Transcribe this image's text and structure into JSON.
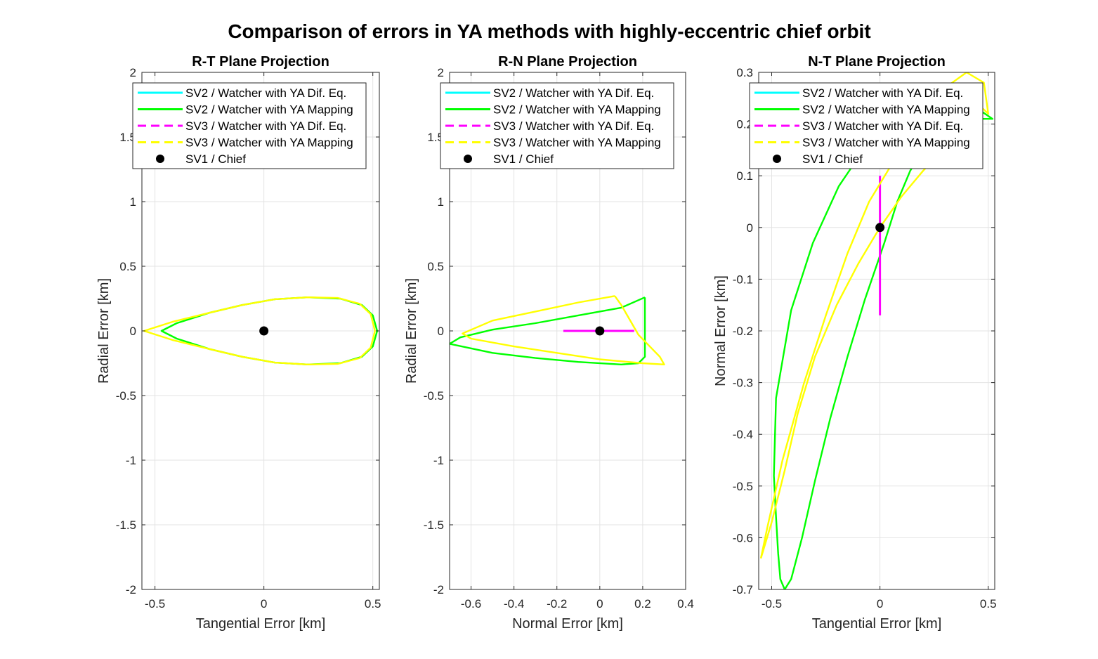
{
  "figure": {
    "title": "Comparison of errors in YA methods with highly-eccentric chief orbit"
  },
  "colors": {
    "sv2_difeq": "#00ffff",
    "sv2_mapping": "#00ff00",
    "sv3_difeq": "#ff00ff",
    "sv3_mapping": "#ffff00",
    "chief": "#000000",
    "grid": "#e3e3e3",
    "axis": "#262626"
  },
  "legend": [
    {
      "label": "SV2 / Watcher with YA Dif. Eq.",
      "color": "#00ffff",
      "style": "solid"
    },
    {
      "label": "SV2 / Watcher with YA Mapping",
      "color": "#00ff00",
      "style": "solid"
    },
    {
      "label": "SV3 / Watcher with YA Dif. Eq.",
      "color": "#ff00ff",
      "style": "dashed"
    },
    {
      "label": "SV3 / Watcher with YA Mapping",
      "color": "#ffff00",
      "style": "dashed"
    },
    {
      "label": "SV1 / Chief",
      "color": "#000000",
      "style": "marker"
    }
  ],
  "chart_data": [
    {
      "type": "line",
      "title": "R-T Plane Projection",
      "xlabel": "Tangential Error [km]",
      "ylabel": "Radial Error [km]",
      "xlim": [
        -0.56,
        0.53
      ],
      "ylim": [
        -2,
        2
      ],
      "xticks": [
        -0.5,
        0,
        0.5
      ],
      "xtick_labels": [
        "-0.5",
        "0",
        "0.5"
      ],
      "yticks": [
        -2,
        -1.5,
        -1,
        -0.5,
        0,
        0.5,
        1,
        1.5,
        2
      ],
      "ytick_labels": [
        "-2",
        "-1.5",
        "-1",
        "-0.5",
        "0",
        "0.5",
        "1",
        "1.5",
        "2"
      ],
      "grid": true,
      "legend_position": "top",
      "series": [
        {
          "name": "SV2 / Watcher with YA Mapping",
          "key": "sv2_mapping",
          "x": [
            0.52,
            0.5,
            0.45,
            0.35,
            0.2,
            0.05,
            -0.1,
            -0.25,
            -0.4,
            -0.47,
            -0.4,
            -0.25,
            -0.1,
            0.05,
            0.2,
            0.35,
            0.45,
            0.5,
            0.52
          ],
          "y": [
            0,
            0.12,
            0.2,
            0.25,
            0.26,
            0.245,
            0.2,
            0.14,
            0.06,
            0,
            -0.06,
            -0.14,
            -0.2,
            -0.245,
            -0.26,
            -0.25,
            -0.2,
            -0.12,
            0
          ]
        },
        {
          "name": "SV3 / Watcher with YA Mapping",
          "key": "sv3_mapping",
          "x": [
            0.51,
            0.49,
            0.44,
            0.34,
            0.2,
            0.05,
            -0.1,
            -0.25,
            -0.42,
            -0.55,
            -0.42,
            -0.25,
            -0.1,
            0.05,
            0.2,
            0.34,
            0.44,
            0.49,
            0.51
          ],
          "y": [
            0,
            0.13,
            0.21,
            0.255,
            0.26,
            0.245,
            0.2,
            0.14,
            0.07,
            0,
            -0.07,
            -0.14,
            -0.2,
            -0.245,
            -0.26,
            -0.255,
            -0.21,
            -0.13,
            0
          ]
        },
        {
          "name": "SV1 / Chief",
          "key": "chief",
          "marker": true,
          "x": [
            0
          ],
          "y": [
            0
          ]
        }
      ]
    },
    {
      "type": "line",
      "title": "R-N Plane Projection",
      "xlabel": "Normal Error [km]",
      "ylabel": "Radial Error [km]",
      "xlim": [
        -0.7,
        0.4
      ],
      "ylim": [
        -2,
        2
      ],
      "xticks": [
        -0.6,
        -0.4,
        -0.2,
        0,
        0.2,
        0.4
      ],
      "xtick_labels": [
        "-0.6",
        "-0.4",
        "-0.2",
        "0",
        "0.2",
        "0.4"
      ],
      "yticks": [
        -2,
        -1.5,
        -1,
        -0.5,
        0,
        0.5,
        1,
        1.5,
        2
      ],
      "ytick_labels": [
        "-2",
        "-1.5",
        "-1",
        "-0.5",
        "0",
        "0.5",
        "1",
        "1.5",
        "2"
      ],
      "grid": true,
      "legend_position": "top",
      "series": [
        {
          "name": "SV2 / Watcher with YA Mapping",
          "key": "sv2_mapping",
          "x": [
            0.21,
            0.1,
            -0.1,
            -0.3,
            -0.5,
            -0.65,
            -0.7,
            -0.5,
            -0.3,
            -0.1,
            0.1,
            0.18,
            0.21,
            0.21
          ],
          "y": [
            0.26,
            0.18,
            0.12,
            0.06,
            0.01,
            -0.05,
            -0.1,
            -0.17,
            -0.21,
            -0.24,
            -0.26,
            -0.25,
            -0.2,
            0.26
          ]
        },
        {
          "name": "SV3 / Watcher with YA Dif. Eq.",
          "key": "sv3_difeq",
          "x": [
            -0.17,
            0.16
          ],
          "y": [
            0,
            0
          ]
        },
        {
          "name": "SV3 / Watcher with YA Mapping",
          "key": "sv3_mapping",
          "x": [
            0.07,
            -0.1,
            -0.3,
            -0.5,
            -0.64,
            -0.6,
            -0.4,
            -0.2,
            0,
            0.2,
            0.3,
            0.28,
            0.18,
            0.1,
            0.07
          ],
          "y": [
            0.27,
            0.22,
            0.15,
            0.08,
            -0.02,
            -0.06,
            -0.12,
            -0.17,
            -0.22,
            -0.25,
            -0.26,
            -0.2,
            -0.03,
            0.2,
            0.27
          ]
        },
        {
          "name": "SV1 / Chief",
          "key": "chief",
          "marker": true,
          "x": [
            0
          ],
          "y": [
            0
          ]
        }
      ]
    },
    {
      "type": "line",
      "title": "N-T Plane Projection",
      "xlabel": "Tangential Error [km]",
      "ylabel": "Normal Error [km]",
      "xlim": [
        -0.56,
        0.53
      ],
      "ylim": [
        -0.7,
        0.3
      ],
      "xticks": [
        -0.5,
        0,
        0.5
      ],
      "xtick_labels": [
        "-0.5",
        "0",
        "0.5"
      ],
      "yticks": [
        -0.7,
        -0.6,
        -0.5,
        -0.4,
        -0.3,
        -0.2,
        -0.1,
        0,
        0.1,
        0.2,
        0.3
      ],
      "ytick_labels": [
        "-0.7",
        "-0.6",
        "-0.5",
        "-0.4",
        "-0.3",
        "-0.2",
        "-0.1",
        "0",
        "0.1",
        "0.2",
        "0.3"
      ],
      "grid": true,
      "legend_position": "top",
      "series": [
        {
          "name": "SV2 / Watcher with YA Mapping",
          "key": "sv2_mapping",
          "x": [
            -0.49,
            -0.48,
            -0.47,
            -0.46,
            -0.44,
            -0.41,
            -0.36,
            -0.3,
            -0.23,
            -0.15,
            -0.07,
            0.02,
            0.08,
            0.14,
            0.2,
            0.26,
            0.32,
            0.38,
            0.45,
            0.5,
            0.52,
            0.45,
            0.35,
            0.22,
            0.08,
            -0.06,
            -0.19,
            -0.31,
            -0.41,
            -0.48,
            -0.49
          ],
          "y": [
            -0.48,
            -0.56,
            -0.63,
            -0.68,
            -0.7,
            -0.68,
            -0.6,
            -0.49,
            -0.37,
            -0.25,
            -0.14,
            -0.03,
            0.05,
            0.11,
            0.15,
            0.17,
            0.19,
            0.2,
            0.21,
            0.21,
            0.21,
            0.23,
            0.25,
            0.24,
            0.21,
            0.16,
            0.08,
            -0.03,
            -0.16,
            -0.33,
            -0.48
          ]
        },
        {
          "name": "SV3 / Watcher with YA Dif. Eq.",
          "key": "sv3_difeq",
          "x": [
            0,
            0
          ],
          "y": [
            0.1,
            -0.17
          ]
        },
        {
          "name": "SV3 / Watcher with YA Mapping",
          "key": "sv3_mapping",
          "x": [
            -0.55,
            -0.5,
            -0.44,
            -0.38,
            -0.3,
            -0.2,
            -0.1,
            0,
            0.1,
            0.2,
            0.27,
            0.35,
            0.45,
            0.5,
            0.48,
            0.4,
            0.3,
            0.2,
            0.08,
            -0.05,
            -0.15,
            -0.25,
            -0.35,
            -0.45,
            -0.52,
            -0.55
          ],
          "y": [
            -0.64,
            -0.57,
            -0.47,
            -0.36,
            -0.25,
            -0.15,
            -0.07,
            0.0,
            0.06,
            0.11,
            0.14,
            0.17,
            0.24,
            0.22,
            0.28,
            0.3,
            0.27,
            0.22,
            0.14,
            0.05,
            -0.05,
            -0.17,
            -0.3,
            -0.45,
            -0.58,
            -0.64
          ]
        },
        {
          "name": "SV1 / Chief",
          "key": "chief",
          "marker": true,
          "x": [
            0
          ],
          "y": [
            0
          ]
        }
      ]
    }
  ]
}
